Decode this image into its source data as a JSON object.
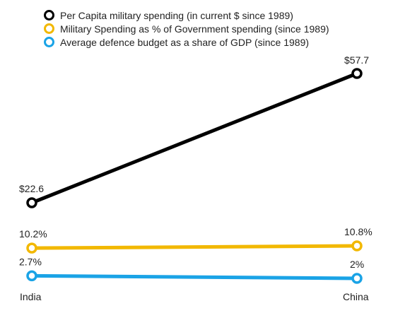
{
  "chart_data": {
    "type": "line",
    "categories": [
      "India",
      "China"
    ],
    "series": [
      {
        "name": "Per Capita military spending (in current $ since 1989)",
        "values": [
          22.6,
          57.7
        ],
        "labels": [
          "$22.6",
          "$57.7"
        ],
        "color": "#000000"
      },
      {
        "name": "Military Spending as % of Government spending (since 1989)",
        "values": [
          10.2,
          10.8
        ],
        "labels": [
          "10.2%",
          "10.8%"
        ],
        "color": "#f2b800"
      },
      {
        "name": "Average defence budget as a share of GDP (since 1989)",
        "values": [
          2.7,
          2.0
        ],
        "labels": [
          "2.7%",
          "2%"
        ],
        "color": "#1aa3e6"
      }
    ],
    "title": "",
    "xlabel": "",
    "ylabel": "",
    "grid": false,
    "legend_position": "top-left"
  }
}
